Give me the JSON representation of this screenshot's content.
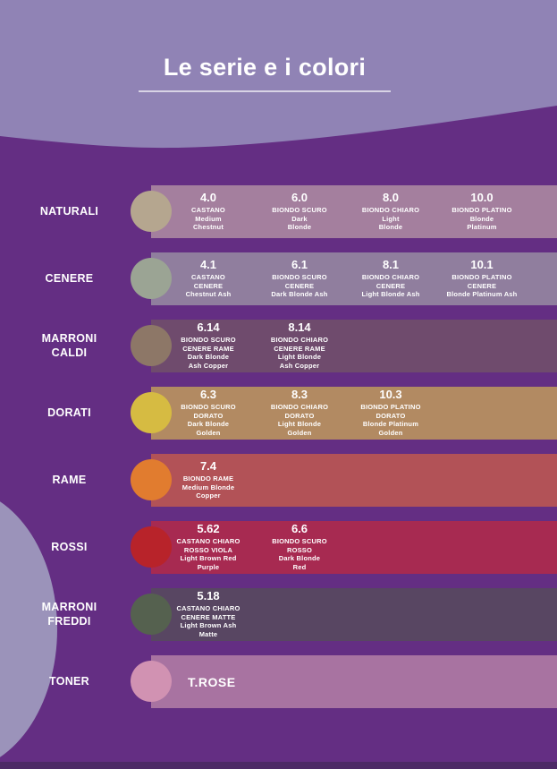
{
  "title": {
    "text": "Le serie e i colori"
  },
  "palette": {
    "bg_top": "#9083b5",
    "bg_main": "#642e83",
    "footer": "#4d2a66",
    "left_blob": "#9b93ba",
    "text": "#ffffff"
  },
  "series": [
    {
      "label": "NATURALI",
      "circle_color": "#b5a68f",
      "bar_color": "#a47f9e",
      "shades": [
        {
          "code": "4.0",
          "name_it": "CASTANO",
          "name_en": "Medium\nChestnut"
        },
        {
          "code": "6.0",
          "name_it": "BIONDO SCURO",
          "name_en": "Dark\nBlonde"
        },
        {
          "code": "8.0",
          "name_it": "BIONDO CHIARO",
          "name_en": "Light\nBlonde"
        },
        {
          "code": "10.0",
          "name_it": "BIONDO PLATINO",
          "name_en": "Blonde\nPlatinum"
        }
      ]
    },
    {
      "label": "CENERE",
      "circle_color": "#9ba494",
      "bar_color": "#907e9e",
      "shades": [
        {
          "code": "4.1",
          "name_it": "CASTANO\nCENERE",
          "name_en": "Chestnut Ash"
        },
        {
          "code": "6.1",
          "name_it": "BIONDO SCURO\nCENERE",
          "name_en": "Dark Blonde Ash"
        },
        {
          "code": "8.1",
          "name_it": "BIONDO CHIARO\nCENERE",
          "name_en": "Light Blonde Ash"
        },
        {
          "code": "10.1",
          "name_it": "BIONDO PLATINO\nCENERE",
          "name_en": "Blonde Platinum Ash"
        }
      ]
    },
    {
      "label": "MARRONI\nCALDI",
      "circle_color": "#8d7767",
      "bar_color": "#6f4b6d",
      "shades": [
        {
          "code": "6.14",
          "name_it": "BIONDO SCURO\nCENERE RAME",
          "name_en": "Dark Blonde\nAsh  Copper"
        },
        {
          "code": "8.14",
          "name_it": "BIONDO CHIARO\nCENERE RAME",
          "name_en": "Light Blonde\nAsh Copper"
        }
      ]
    },
    {
      "label": "DORATI",
      "circle_color": "#d6bb42",
      "bar_color": "#b28a62",
      "shades": [
        {
          "code": "6.3",
          "name_it": "BIONDO SCURO\nDORATO",
          "name_en": "Dark Blonde\nGolden"
        },
        {
          "code": "8.3",
          "name_it": "BIONDO CHIARO\nDORATO",
          "name_en": "Light Blonde\nGolden"
        },
        {
          "code": "10.3",
          "name_it": "BIONDO PLATINO\nDORATO",
          "name_en": "Blonde Platinum\nGolden"
        }
      ]
    },
    {
      "label": "RAME",
      "circle_color": "#e17c2f",
      "bar_color": "#b25257",
      "shades": [
        {
          "code": "7.4",
          "name_it": "BIONDO RAME",
          "name_en": "Medium Blonde\nCopper"
        }
      ]
    },
    {
      "label": "ROSSI",
      "circle_color": "#b8232a",
      "bar_color": "#a72a51",
      "shades": [
        {
          "code": "5.62",
          "name_it": "CASTANO CHIARO\nROSSO VIOLA",
          "name_en": "Light Brown Red\nPurple"
        },
        {
          "code": "6.6",
          "name_it": "BIONDO SCURO\nROSSO",
          "name_en": "Dark Blonde\nRed"
        }
      ]
    },
    {
      "label": "MARRONI\nFREDDI",
      "circle_color": "#55614f",
      "bar_color": "#584662",
      "shades": [
        {
          "code": "5.18",
          "name_it": "CASTANO CHIARO\nCENERE MATTE",
          "name_en": "Light Brown Ash\nMatte"
        }
      ]
    },
    {
      "label": "TONER",
      "circle_color": "#d192b2",
      "bar_color": "#a873a1",
      "toner_label": "T.ROSE",
      "shades": []
    }
  ]
}
